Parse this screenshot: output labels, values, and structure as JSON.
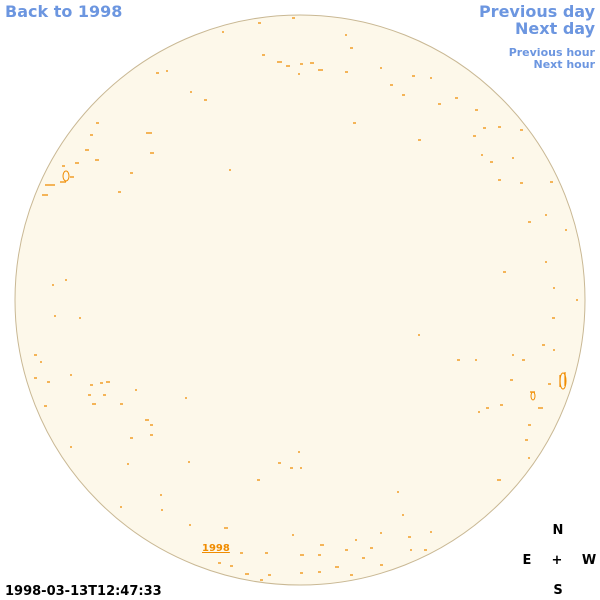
{
  "nav": {
    "back": "Back to 1998",
    "previous_day": "Previous day",
    "next_day": "Next day",
    "previous_hour": "Previous hour",
    "next_hour": "Next hour"
  },
  "disk_label": "1998",
  "timestamp": "1998-03-13T12:47:33",
  "compass": {
    "north": "N",
    "east": "E",
    "center": "+",
    "west": "W",
    "south": "S"
  }
}
